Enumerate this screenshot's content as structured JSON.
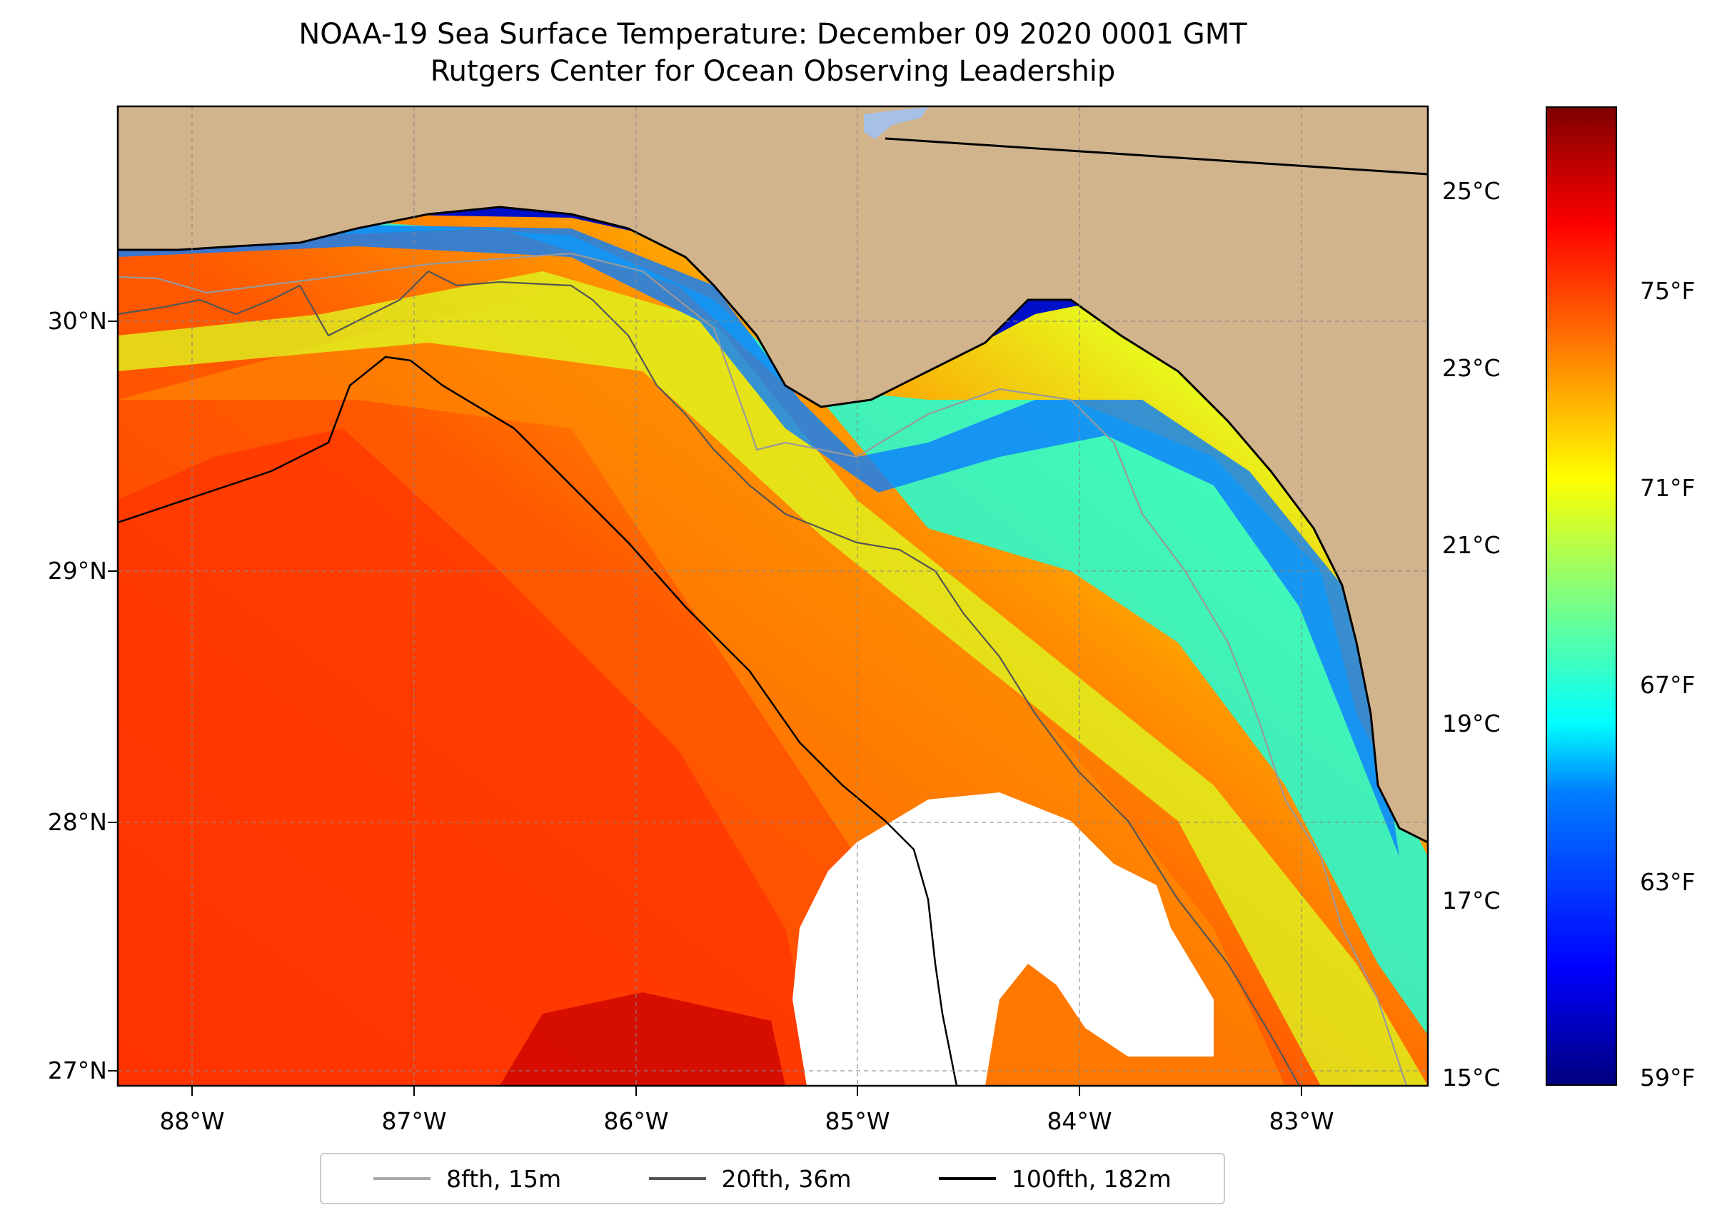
{
  "title": {
    "line1": "NOAA-19 Sea Surface Temperature: December 09 2020 0001 GMT",
    "line2": "Rutgers Center for Ocean Observing Leadership"
  },
  "axes": {
    "lat_labels": [
      "30°N",
      "29°N",
      "28°N",
      "27°N"
    ],
    "lon_labels": [
      "88°W",
      "87°W",
      "86°W",
      "85°W",
      "84°W",
      "83°W"
    ]
  },
  "colorbar": {
    "celsius_labels": [
      "25°C",
      "23°C",
      "21°C",
      "19°C",
      "17°C",
      "15°C"
    ],
    "fahrenheit_labels": [
      "75°F",
      "71°F",
      "67°F",
      "63°F",
      "59°F"
    ],
    "colormap": [
      "#00007f",
      "#0000ff",
      "#007fff",
      "#00ffff",
      "#7fff7f",
      "#ffff00",
      "#ff7f00",
      "#ff0000",
      "#7f0000"
    ],
    "range_c": [
      15,
      26
    ]
  },
  "legend": {
    "items": [
      {
        "label": "8fth, 15m",
        "color": "#aaaaaa"
      },
      {
        "label": "20fth, 36m",
        "color": "#555555"
      },
      {
        "label": "100fth, 182m",
        "color": "#000000"
      }
    ]
  },
  "colors": {
    "land": "#d2b48c",
    "cloud_mask": "#ffffff",
    "lake": "#a6c0e6"
  }
}
